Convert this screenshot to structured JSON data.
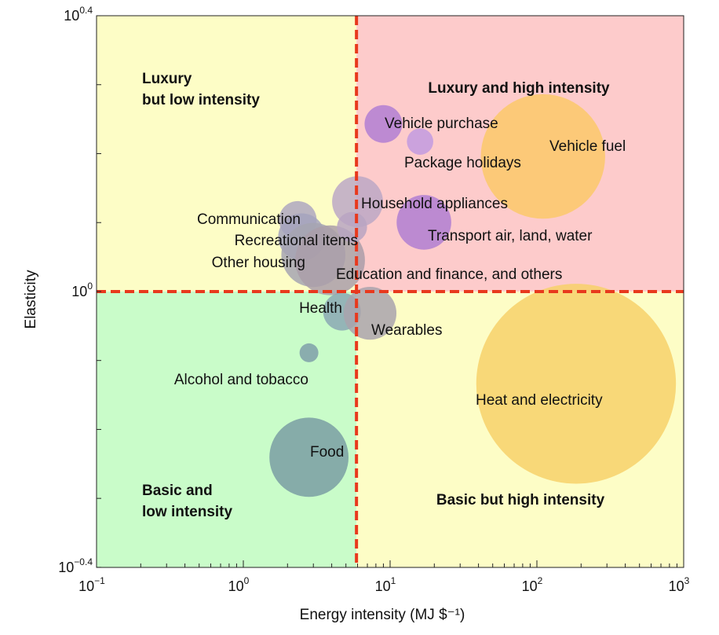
{
  "chart_data": {
    "type": "scatter",
    "xlabel": "Energy intensity (MJ $⁻¹)",
    "ylabel": "Elasticity",
    "x_scale": "log",
    "y_scale": "log",
    "xlim": [
      0.1,
      1000
    ],
    "ylim": [
      0.398,
      2.512
    ],
    "x_ticks": [
      {
        "value": 0.1,
        "base": "10",
        "exp": "−1"
      },
      {
        "value": 1,
        "base": "10",
        "exp": "0"
      },
      {
        "value": 10,
        "base": "10",
        "exp": "1"
      },
      {
        "value": 100,
        "base": "10",
        "exp": "2"
      },
      {
        "value": 1000,
        "base": "10",
        "exp": "3"
      }
    ],
    "y_ticks": [
      {
        "value": 0.398,
        "base": "10",
        "exp": "−0.4"
      },
      {
        "value": 1,
        "base": "10",
        "exp": "0"
      },
      {
        "value": 2.512,
        "base": "10",
        "exp": "0.4"
      }
    ],
    "thresholds": {
      "x": 5.9,
      "y": 1.0,
      "color": "#e8391d"
    },
    "quadrants": [
      {
        "lines": [
          "Luxury",
          "but low intensity"
        ],
        "color": "#fdfdc6"
      },
      {
        "lines": [
          "Luxury and high intensity"
        ],
        "color": "#fdcbcb"
      },
      {
        "lines": [
          "Basic and",
          "low intensity"
        ],
        "color": "#c9fcc9"
      },
      {
        "lines": [
          "Basic but high intensity"
        ],
        "color": "#fdfdc6"
      }
    ],
    "grid": false,
    "points": [
      {
        "label": "Vehicle purchase",
        "x": 9.0,
        "y": 1.75,
        "size": 1.0,
        "color": "#b27fd4"
      },
      {
        "label": "Package holidays",
        "x": 16.0,
        "y": 1.65,
        "size": 0.7,
        "color": "#c29be0"
      },
      {
        "label": "Vehicle fuel",
        "x": 110,
        "y": 1.57,
        "size": 3.3,
        "color": "#fbc96a"
      },
      {
        "label": "Household appliances",
        "x": 6.0,
        "y": 1.35,
        "size": 1.35,
        "color": "#bca8c6"
      },
      {
        "label": "Transport air, land, water",
        "x": 17.0,
        "y": 1.26,
        "size": 1.45,
        "color": "#b07fd2"
      },
      {
        "label": "Communication",
        "x": 2.35,
        "y": 1.27,
        "size": 1.0,
        "color": "#aea7c0"
      },
      {
        "label": "Recreational items",
        "x": 2.5,
        "y": 1.2,
        "size": 1.25,
        "color": "#a5a3bd"
      },
      {
        "label": "Other housing",
        "x": 3.0,
        "y": 1.13,
        "size": 1.7,
        "color": "#a6a4b2"
      },
      {
        "label": "Education and finance, and others",
        "x": 3.9,
        "y": 1.11,
        "size": 1.85,
        "color": "#aa9ea9"
      },
      {
        "label": "",
        "x": 5.5,
        "y": 1.24,
        "size": 0.8,
        "color": "#b8a5c2"
      },
      {
        "label": "Health",
        "x": 4.7,
        "y": 0.935,
        "size": 1.0,
        "color": "#8ba8b4"
      },
      {
        "label": "Wearables",
        "x": 7.3,
        "y": 0.93,
        "size": 1.4,
        "color": "#a9a3ad"
      },
      {
        "label": "Alcohol and tobacco",
        "x": 2.8,
        "y": 0.815,
        "size": 0.5,
        "color": "#7f9fa9"
      },
      {
        "label": "Food",
        "x": 2.8,
        "y": 0.575,
        "size": 2.1,
        "color": "#7a9da3"
      },
      {
        "label": "Heat and electricity",
        "x": 185,
        "y": 0.735,
        "size": 5.3,
        "color": "#f7d16a"
      }
    ]
  }
}
